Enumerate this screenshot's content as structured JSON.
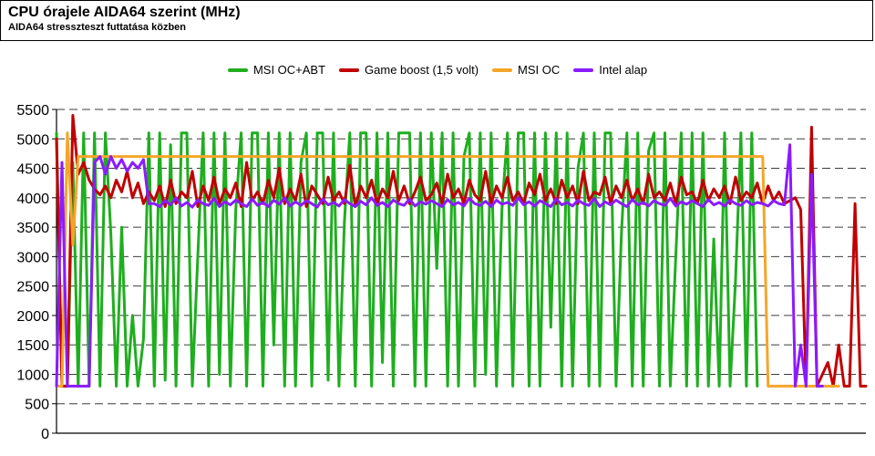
{
  "chart_data": {
    "type": "line",
    "title": "CPU órajele AIDA64 szerint (MHz)",
    "subtitle": "AIDA64 stresszteszt futtatása közben",
    "ylim": [
      0,
      5500
    ],
    "y_ticks": [
      0,
      500,
      1000,
      1500,
      2000,
      2500,
      3000,
      3500,
      4000,
      4500,
      5000,
      5500
    ],
    "grid": true,
    "legend_position": "top",
    "series": [
      {
        "name": "MSI OC+ABT",
        "color": "#1fae1f",
        "values": [
          5100,
          800,
          800,
          4600,
          800,
          5100,
          800,
          5100,
          800,
          5100,
          3400,
          800,
          3500,
          800,
          2000,
          800,
          1600,
          5100,
          800,
          5100,
          900,
          4900,
          800,
          5100,
          5100,
          800,
          3000,
          5100,
          800,
          5100,
          1000,
          5100,
          800,
          3800,
          5100,
          800,
          5100,
          5100,
          800,
          5100,
          1500,
          5100,
          800,
          5100,
          800,
          4600,
          5100,
          800,
          5100,
          5100,
          900,
          5100,
          800,
          3600,
          5100,
          800,
          5100,
          5100,
          800,
          5100,
          1200,
          5100,
          800,
          5100,
          5100,
          5100,
          800,
          5100,
          800,
          5100,
          2800,
          5100,
          800,
          5100,
          800,
          4700,
          5100,
          800,
          5100,
          1000,
          5100,
          800,
          3800,
          5100,
          800,
          5100,
          5100,
          800,
          5100,
          800,
          5100,
          1800,
          5100,
          800,
          5100,
          800,
          4500,
          5100,
          800,
          5100,
          800,
          5100,
          5100,
          800,
          3400,
          5100,
          800,
          5100,
          800,
          4800,
          5100,
          800,
          5100,
          800,
          3000,
          5100,
          800,
          5100,
          800,
          5100,
          800,
          3300,
          800,
          5100,
          800,
          2600,
          5100,
          800,
          5100,
          800,
          null,
          null,
          null,
          null,
          null,
          null,
          null,
          null,
          null,
          null,
          null,
          null,
          null,
          null,
          null,
          null,
          null,
          null,
          null,
          null
        ]
      },
      {
        "name": "Game boost (1,5 volt)",
        "color": "#c00000",
        "values": [
          5000,
          800,
          800,
          5400,
          4400,
          4600,
          4300,
          4150,
          4050,
          4200,
          4000,
          4300,
          4100,
          4450,
          4000,
          4250,
          3900,
          4100,
          3950,
          4200,
          3850,
          4300,
          3900,
          4100,
          4000,
          4450,
          3850,
          4200,
          3950,
          4350,
          3900,
          4150,
          4000,
          4250,
          3850,
          4600,
          3950,
          4100,
          3900,
          4300,
          4000,
          4500,
          3900,
          4150,
          3950,
          4400,
          3850,
          4200,
          4050,
          3900,
          4350,
          3950,
          4100,
          3900,
          4550,
          3850,
          4200,
          4000,
          4300,
          3900,
          4150,
          4000,
          4450,
          3950,
          4200,
          3900,
          4100,
          4350,
          3950,
          4050,
          4250,
          3900,
          4400,
          4000,
          4150,
          3900,
          4300,
          4050,
          3950,
          4450,
          3900,
          4200,
          4000,
          4350,
          3950,
          4100,
          3900,
          4250,
          4050,
          4400,
          3950,
          4150,
          3900,
          4300,
          4000,
          4200,
          3900,
          4450,
          3950,
          4100,
          4050,
          4350,
          3900,
          4200,
          4000,
          4300,
          3950,
          4150,
          3900,
          4400,
          4000,
          4100,
          3950,
          4250,
          3900,
          4350,
          4050,
          4100,
          3900,
          4300,
          3950,
          4150,
          4000,
          4200,
          3900,
          4350,
          3950,
          4100,
          4000,
          4250,
          3900,
          4200,
          3950,
          4100,
          3900,
          3950,
          4000,
          3800,
          800,
          5200,
          800,
          1000,
          1200,
          800,
          1500,
          800,
          800,
          3900,
          800,
          800
        ]
      },
      {
        "name": "MSI OC",
        "color": "#f4a62a",
        "values": [
          800,
          800,
          5100,
          3200,
          4700,
          4700,
          4700,
          4700,
          4700,
          4700,
          4700,
          4700,
          4700,
          4700,
          4700,
          4700,
          4700,
          4700,
          4700,
          4700,
          4700,
          4700,
          4700,
          4700,
          4700,
          4700,
          4700,
          4700,
          4700,
          4700,
          4700,
          4700,
          4700,
          4700,
          4700,
          4700,
          4700,
          4700,
          4700,
          4700,
          4700,
          4700,
          4700,
          4700,
          4700,
          4700,
          4700,
          4700,
          4700,
          4700,
          4700,
          4700,
          4700,
          4700,
          4700,
          4700,
          4700,
          4700,
          4700,
          4700,
          4700,
          4700,
          4700,
          4700,
          4700,
          4700,
          4700,
          4700,
          4700,
          4700,
          4700,
          4700,
          4700,
          4700,
          4700,
          4700,
          4700,
          4700,
          4700,
          4700,
          4700,
          4700,
          4700,
          4700,
          4700,
          4700,
          4700,
          4700,
          4700,
          4700,
          4700,
          4700,
          4700,
          4700,
          4700,
          4700,
          4700,
          4700,
          4700,
          4700,
          4700,
          4700,
          4700,
          4700,
          4700,
          4700,
          4700,
          4700,
          4700,
          4700,
          4700,
          4700,
          4700,
          4700,
          4700,
          4700,
          4700,
          4700,
          4700,
          4700,
          4700,
          4700,
          4700,
          4700,
          4700,
          4700,
          4700,
          4700,
          4700,
          4700,
          4700,
          800,
          800,
          800,
          800,
          800,
          800,
          800,
          800,
          800,
          800,
          800,
          800,
          800,
          800,
          null,
          null,
          null,
          null,
          null
        ]
      },
      {
        "name": "Intel alap",
        "color": "#8b1bff",
        "values": [
          800,
          4600,
          800,
          800,
          800,
          800,
          800,
          4600,
          4700,
          4400,
          4700,
          4500,
          4650,
          4450,
          4600,
          4500,
          4650,
          3900,
          3900,
          3850,
          3950,
          3880,
          4000,
          3860,
          3920,
          3840,
          3960,
          3900,
          3870,
          3990,
          3850,
          3930,
          3880,
          3960,
          3900,
          3850,
          3980,
          3870,
          3920,
          3850,
          3960,
          3890,
          4000,
          3860,
          3930,
          3870,
          3950,
          3900,
          3840,
          3980,
          3880,
          3920,
          3860,
          3970,
          3900,
          3850,
          3940,
          3880,
          4000,
          3870,
          3920,
          3850,
          3960,
          3900,
          3870,
          3980,
          3860,
          3930,
          3890,
          3950,
          3900,
          3850,
          3970,
          3880,
          3920,
          3860,
          3990,
          3900,
          3870,
          3940,
          3850,
          3960,
          3890,
          3920,
          3870,
          4000,
          3880,
          3930,
          3860,
          3950,
          3900,
          3850,
          3980,
          3880,
          3920,
          3860,
          3960,
          3900,
          3870,
          3990,
          3850,
          3930,
          3880,
          3960,
          3900,
          3850,
          3970,
          3880,
          3920,
          3860,
          3950,
          3900,
          3870,
          3990,
          3860,
          3930,
          3890,
          3950,
          3900,
          3850,
          3970,
          3880,
          3920,
          3860,
          3960,
          3900,
          3870,
          3950,
          3880,
          3920,
          3900,
          3860,
          3950,
          3900,
          3880,
          4900,
          800,
          1500,
          800,
          4400,
          800,
          800,
          null,
          null,
          null,
          null,
          null,
          null,
          null,
          null
        ]
      }
    ]
  }
}
